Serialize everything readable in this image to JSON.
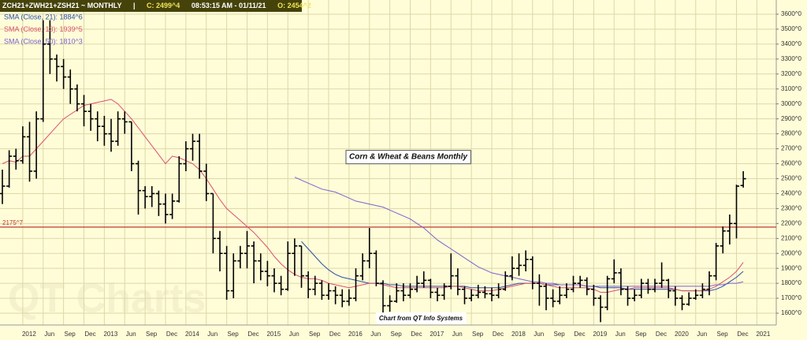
{
  "chart_data": {
    "type": "ohlc",
    "header": [
      "ZCH21+ZWH21+ZSH21 ~ MONTHLY",
      "|",
      "C: 2499^4",
      "08:53:15 AM - 01/11/21",
      "O: 2454^2"
    ],
    "categories": [
      null,
      null,
      null,
      "2012",
      null,
      null,
      "Jun",
      null,
      null,
      "Sep",
      null,
      null,
      "Dec",
      null,
      null,
      "2013",
      null,
      null,
      "Jun",
      null,
      null,
      "Sep",
      null,
      null,
      "Dec",
      null,
      null,
      "2014",
      null,
      null,
      "Jun",
      null,
      null,
      "Sep",
      null,
      null,
      "Dec",
      null,
      null,
      "2015",
      null,
      null,
      "Jun",
      null,
      null,
      "Sep",
      null,
      null,
      "Dec",
      null,
      null,
      "2016",
      null,
      null,
      "Jun",
      null,
      null,
      "Sep",
      null,
      null,
      "Dec",
      null,
      null,
      "2017",
      null,
      null,
      "Jun",
      null,
      null,
      "Sep",
      null,
      null,
      "Dec",
      null,
      null,
      "2018",
      null,
      null,
      "Jun",
      null,
      null,
      "Sep",
      null,
      null,
      "Dec",
      null,
      null,
      "2019",
      null,
      null,
      "Jun",
      null,
      null,
      "Sep",
      null,
      null,
      "Dec",
      null,
      null,
      "2020",
      null,
      null,
      "Jun",
      null,
      null,
      "Sep",
      null,
      null,
      "Dec",
      null,
      null,
      "2021",
      null
    ],
    "open": [
      2400,
      2450,
      2650,
      2620,
      2780,
      2550,
      2900,
      3400,
      3300,
      3250,
      3180,
      3100,
      3000,
      2950,
      2900,
      2850,
      2800,
      2750,
      2900,
      2880,
      2600,
      2420,
      2380,
      2400,
      2330,
      2260,
      2350,
      2600,
      2700,
      2750,
      2550,
      2400,
      2100,
      2000,
      1750,
      1950,
      2000,
      2050,
      1950,
      1880,
      1850,
      1800,
      1760,
      2000,
      2050,
      1850,
      1760,
      1800,
      1720,
      1750,
      1720,
      1680,
      1700,
      1850,
      1950,
      2000,
      1800,
      1650,
      1680,
      1750,
      1720,
      1760,
      1800,
      1820,
      1740,
      1720,
      1780,
      1850,
      1760,
      1700,
      1720,
      1740,
      1730,
      1720,
      1760,
      1850,
      1900,
      1920,
      1960,
      1800,
      1780,
      1700,
      1680,
      1720,
      1760,
      1800,
      1820,
      1760,
      1700,
      1640,
      1830,
      1870,
      1760,
      1700,
      1720,
      1800,
      1760,
      1800,
      1820,
      1750,
      1700,
      1660,
      1700,
      1720,
      1760,
      1850,
      2050,
      2150,
      2200,
      2454.25,
      null,
      null,
      null
    ],
    "high": [
      2560,
      2690,
      2700,
      2850,
      2880,
      2950,
      3560,
      3560,
      3330,
      3300,
      3230,
      3130,
      3060,
      3000,
      2950,
      2920,
      2900,
      2950,
      2950,
      2880,
      2620,
      2450,
      2450,
      2420,
      2400,
      2400,
      2650,
      2750,
      2800,
      2800,
      2600,
      2400,
      2150,
      2050,
      2000,
      2050,
      2150,
      2080,
      2000,
      1950,
      1900,
      1850,
      2080,
      2100,
      2050,
      1880,
      1850,
      1820,
      1800,
      1780,
      1760,
      1760,
      1900,
      2000,
      2170,
      2020,
      1820,
      1720,
      1800,
      1800,
      1800,
      1850,
      1880,
      1830,
      1770,
      1800,
      2000,
      1900,
      1780,
      1760,
      1790,
      1780,
      1770,
      1800,
      1880,
      1980,
      2000,
      2020,
      1980,
      1860,
      1800,
      1760,
      1780,
      1800,
      1850,
      1850,
      1840,
      1790,
      1720,
      1850,
      1960,
      1900,
      1780,
      1760,
      1830,
      1830,
      1830,
      1940,
      1830,
      1780,
      1720,
      1740,
      1760,
      1800,
      1880,
      2070,
      2180,
      2260,
      2460,
      2550,
      null,
      null,
      null
    ],
    "low": [
      2330,
      2440,
      2560,
      2600,
      2480,
      2500,
      2880,
      3200,
      3150,
      3100,
      3000,
      2950,
      2850,
      2820,
      2750,
      2720,
      2680,
      2720,
      2800,
      2550,
      2260,
      2300,
      2310,
      2250,
      2200,
      2230,
      2340,
      2550,
      2620,
      2500,
      2350,
      2000,
      1880,
      1690,
      1700,
      1900,
      1900,
      1800,
      1820,
      1780,
      1740,
      1720,
      1750,
      1850,
      1770,
      1700,
      1720,
      1690,
      1690,
      1660,
      1640,
      1650,
      1680,
      1820,
      1900,
      1780,
      1600,
      1610,
      1670,
      1680,
      1700,
      1740,
      1770,
      1700,
      1680,
      1690,
      1760,
      1720,
      1660,
      1680,
      1700,
      1700,
      1680,
      1700,
      1750,
      1820,
      1850,
      1880,
      1760,
      1650,
      1620,
      1640,
      1660,
      1700,
      1740,
      1770,
      1720,
      1650,
      1540,
      1620,
      1800,
      1720,
      1650,
      1680,
      1700,
      1730,
      1740,
      1770,
      1700,
      1650,
      1620,
      1650,
      1690,
      1700,
      1720,
      1820,
      2000,
      2060,
      2100,
      2440,
      null,
      null,
      null
    ],
    "close": [
      2450,
      2650,
      2620,
      2780,
      2550,
      2900,
      3400,
      3300,
      3250,
      3180,
      3100,
      3000,
      2950,
      2900,
      2850,
      2800,
      2750,
      2900,
      2880,
      2600,
      2420,
      2380,
      2400,
      2330,
      2260,
      2350,
      2600,
      2700,
      2750,
      2550,
      2400,
      2100,
      2000,
      1750,
      1950,
      2000,
      2050,
      1950,
      1880,
      1850,
      1800,
      1760,
      2000,
      2050,
      1850,
      1760,
      1800,
      1720,
      1750,
      1720,
      1680,
      1700,
      1850,
      1950,
      2000,
      1800,
      1650,
      1680,
      1750,
      1720,
      1760,
      1800,
      1820,
      1740,
      1720,
      1780,
      1850,
      1760,
      1700,
      1720,
      1740,
      1730,
      1720,
      1760,
      1850,
      1900,
      1920,
      1960,
      1800,
      1780,
      1700,
      1680,
      1720,
      1760,
      1800,
      1820,
      1760,
      1700,
      1640,
      1830,
      1870,
      1760,
      1700,
      1720,
      1800,
      1760,
      1800,
      1820,
      1750,
      1700,
      1660,
      1700,
      1720,
      1760,
      1850,
      2050,
      2150,
      2200,
      2450,
      2499.5,
      null,
      null,
      null
    ],
    "color": "#000000",
    "series": [
      {
        "name": "SMA (Close, 21): 1884^6",
        "color": "#2a4fa8",
        "values": [
          null,
          null,
          null,
          null,
          null,
          null,
          null,
          null,
          null,
          null,
          null,
          null,
          null,
          null,
          null,
          null,
          null,
          null,
          null,
          null,
          null,
          null,
          null,
          null,
          null,
          null,
          null,
          null,
          null,
          null,
          null,
          null,
          null,
          null,
          null,
          null,
          null,
          null,
          null,
          null,
          null,
          null,
          null,
          null,
          2080,
          2030,
          1980,
          1930,
          1890,
          1860,
          1840,
          1830,
          1820,
          1810,
          1800,
          1800,
          1800,
          1790,
          1790,
          1780,
          1780,
          1780,
          1780,
          1780,
          1780,
          1780,
          1780,
          1780,
          1780,
          1770,
          1770,
          1770,
          1770,
          1770,
          1780,
          1790,
          1800,
          1800,
          1800,
          1800,
          1790,
          1790,
          1790,
          1790,
          1790,
          1790,
          1780,
          1780,
          1770,
          1770,
          1770,
          1770,
          1760,
          1760,
          1760,
          1760,
          1760,
          1760,
          1760,
          1760,
          1750,
          1750,
          1750,
          1750,
          1750,
          1760,
          1780,
          1810,
          1840,
          1880,
          null,
          null,
          null
        ]
      },
      {
        "name": "SMA (Close, 13): 1939^5",
        "color": "#d9506e",
        "values": [
          2600,
          2620,
          2610,
          2650,
          2650,
          2700,
          2750,
          2800,
          2850,
          2900,
          2930,
          2960,
          2990,
          3000,
          3010,
          3020,
          3030,
          3000,
          2950,
          2900,
          2840,
          2780,
          2720,
          2660,
          2600,
          2650,
          2640,
          2620,
          2600,
          2560,
          2500,
          2430,
          2360,
          2300,
          2260,
          2220,
          2180,
          2140,
          2090,
          2040,
          1980,
          1930,
          1890,
          1860,
          1840,
          1830,
          1830,
          1820,
          1800,
          1790,
          1780,
          1770,
          1780,
          1790,
          1800,
          1800,
          1790,
          1780,
          1770,
          1770,
          1770,
          1770,
          1770,
          1770,
          1770,
          1770,
          1780,
          1780,
          1770,
          1760,
          1750,
          1750,
          1750,
          1760,
          1770,
          1780,
          1790,
          1800,
          1800,
          1800,
          1790,
          1780,
          1770,
          1770,
          1770,
          1770,
          1770,
          1760,
          1740,
          1740,
          1750,
          1760,
          1760,
          1770,
          1770,
          1770,
          1770,
          1770,
          1770,
          1760,
          1750,
          1750,
          1750,
          1750,
          1760,
          1780,
          1810,
          1840,
          1880,
          1940,
          null,
          null,
          null
        ]
      },
      {
        "name": "SMA (Close, 50): 1810^3",
        "color": "#7a62d0",
        "values": [
          null,
          null,
          null,
          null,
          null,
          null,
          null,
          null,
          null,
          null,
          null,
          null,
          null,
          null,
          null,
          null,
          null,
          null,
          null,
          null,
          null,
          null,
          null,
          null,
          null,
          null,
          null,
          null,
          null,
          null,
          null,
          null,
          null,
          null,
          null,
          null,
          null,
          null,
          null,
          null,
          null,
          null,
          null,
          2510,
          2490,
          2470,
          2450,
          2430,
          2420,
          2410,
          2390,
          2370,
          2350,
          2340,
          2330,
          2320,
          2310,
          2290,
          2270,
          2250,
          2230,
          2200,
          2170,
          2130,
          2090,
          2060,
          2030,
          2000,
          1970,
          1940,
          1910,
          1890,
          1870,
          1860,
          1850,
          1840,
          1830,
          1820,
          1810,
          1810,
          1800,
          1800,
          1790,
          1790,
          1790,
          1790,
          1780,
          1780,
          1780,
          1780,
          1780,
          1780,
          1780,
          1780,
          1780,
          1780,
          1780,
          1780,
          1780,
          1780,
          1780,
          1780,
          1780,
          1780,
          1780,
          1790,
          1790,
          1800,
          1800,
          1810,
          null,
          null,
          null
        ]
      }
    ],
    "ylim": [
      1521,
      3695
    ],
    "yticks": [
      {
        "value": 1600,
        "label": "1600^0"
      },
      {
        "value": 1700,
        "label": "1700^0"
      },
      {
        "value": 1800,
        "label": "1800^0"
      },
      {
        "value": 1900,
        "label": "1900^0"
      },
      {
        "value": 2000,
        "label": "2000^0"
      },
      {
        "value": 2100,
        "label": "2100^0"
      },
      {
        "value": 2200,
        "label": "2200^0"
      },
      {
        "value": 2300,
        "label": "2300^0"
      },
      {
        "value": 2400,
        "label": "2400^0"
      },
      {
        "value": 2500,
        "label": "2500^0"
      },
      {
        "value": 2600,
        "label": "2600^0"
      },
      {
        "value": 2700,
        "label": "2700^0"
      },
      {
        "value": 2800,
        "label": "2800^0"
      },
      {
        "value": 2900,
        "label": "2900^0"
      },
      {
        "value": 3000,
        "label": "3000^0"
      },
      {
        "value": 3100,
        "label": "3100^0"
      },
      {
        "value": 3200,
        "label": "3200^0"
      },
      {
        "value": 3300,
        "label": "3300^0"
      },
      {
        "value": 3400,
        "label": "3400^0"
      },
      {
        "value": 3500,
        "label": "3500^0"
      },
      {
        "value": 3600,
        "label": "3600^0"
      }
    ],
    "hline": {
      "value": 2175.875,
      "label": "2175^7",
      "color": "#c0392b"
    },
    "annotations": [
      "Corn & Wheat & Beans Monthly",
      "Chart from QT Info Systems"
    ],
    "watermark": "QT Charts",
    "grid": true
  }
}
